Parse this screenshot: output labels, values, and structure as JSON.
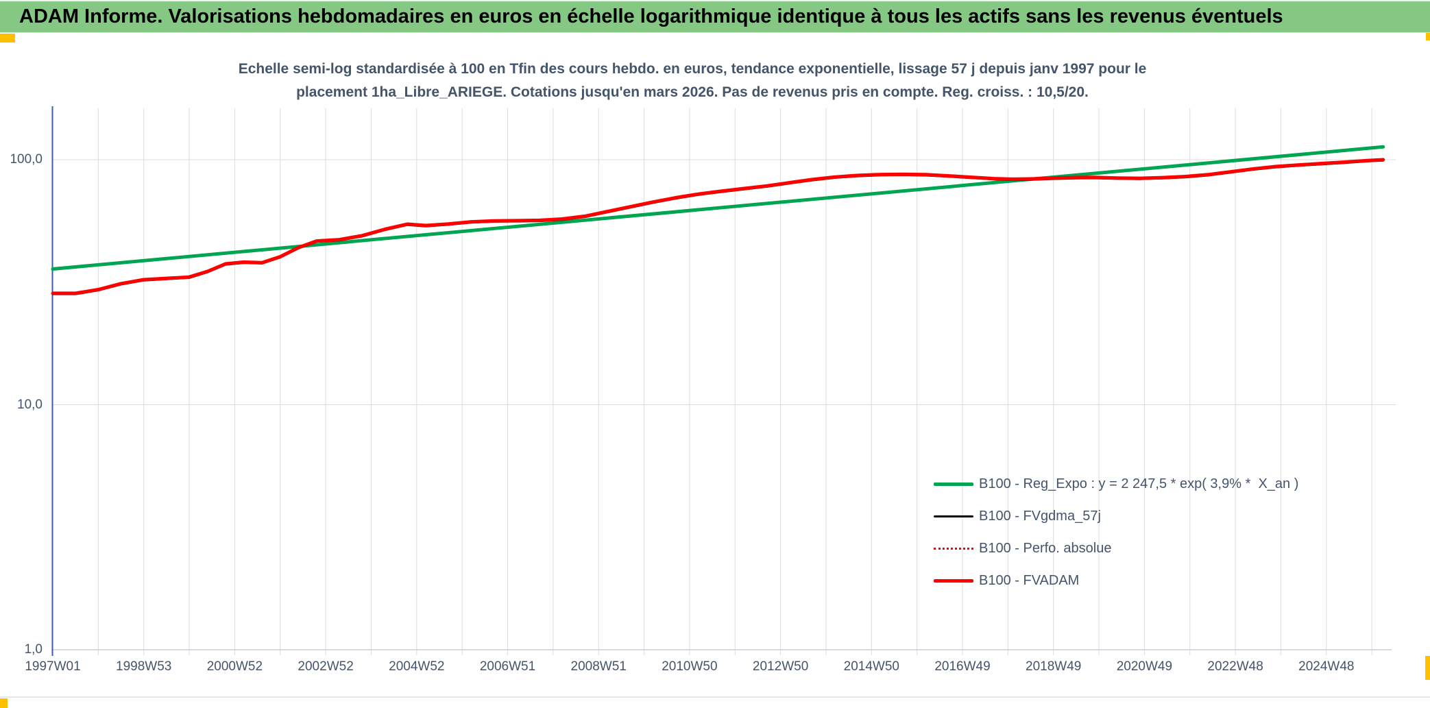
{
  "window": {
    "title": "ADAM Informe. Valorisations hebdomadaires en euros en échelle logarithmique identique à tous les actifs sans les revenus éventuels"
  },
  "chart": {
    "title_line1": "Echelle semi-log standardisée à 100 en Tfin des cours hebdo. en euros, tendance exponentielle, lissage 57 j depuis janv 1997 pour le",
    "title_line2": "placement 1ha_Libre_ARIEGE. Cotations jusqu'en mars 2026. Pas de revenus pris en compte. Reg. croiss. : 10,5/20."
  },
  "colors": {
    "titlebar_bg": "#84c884",
    "marker_orange": "#ffc000",
    "series_green": "#00a551",
    "series_red": "#ff0000",
    "series_black": "#000000",
    "axis_blue": "#3a5da8",
    "gridline": "#dcdcdc",
    "baseline": "#c6cedd",
    "text_dark": "#44546a"
  },
  "chart_data": {
    "type": "line",
    "y_scale": "log10",
    "grid": "on",
    "legend_position": "inside-right-lower",
    "x_axis": {
      "range_years": [
        1997.0,
        2026.25
      ],
      "gridline_step_years": 1,
      "ticks": [
        {
          "label": "1997W01",
          "year": 1997
        },
        {
          "label": "1998W53",
          "year": 1999
        },
        {
          "label": "2000W52",
          "year": 2001
        },
        {
          "label": "2002W52",
          "year": 2003
        },
        {
          "label": "2004W52",
          "year": 2005
        },
        {
          "label": "2006W51",
          "year": 2007
        },
        {
          "label": "2008W51",
          "year": 2009
        },
        {
          "label": "2010W50",
          "year": 2011
        },
        {
          "label": "2012W50",
          "year": 2013
        },
        {
          "label": "2014W50",
          "year": 2015
        },
        {
          "label": "2016W49",
          "year": 2017
        },
        {
          "label": "2018W49",
          "year": 2019
        },
        {
          "label": "2020W49",
          "year": 2021
        },
        {
          "label": "2022W48",
          "year": 2023
        },
        {
          "label": "2024W48",
          "year": 2025
        }
      ]
    },
    "y_axis": {
      "ticks": [
        {
          "label": "100,0",
          "value": 100
        },
        {
          "label": "10,0",
          "value": 10
        },
        {
          "label": "1,0",
          "value": 1
        }
      ],
      "range": [
        1,
        200
      ]
    },
    "series": [
      {
        "name": "B100 - Reg_Expo : y = 2 247,5 * exp( 3,9% *  X_an )",
        "color": "#00a551",
        "style": "solid-thick",
        "points": [
          [
            1997.0,
            35.8
          ],
          [
            2026.25,
            112.8
          ]
        ]
      },
      {
        "name": "B100 - FVgdma_57j",
        "color": "#000000",
        "style": "solid-thin",
        "points_same_as": "B100 - FVADAM"
      },
      {
        "name": "B100 - Perfo. absolue",
        "color": "#ff0000",
        "style": "dotted",
        "points_same_as": "B100 - FVADAM"
      },
      {
        "name": "B100 - FVADAM",
        "color": "#ff0000",
        "style": "solid-thick",
        "points": [
          [
            1997.0,
            28.5
          ],
          [
            1997.5,
            28.5
          ],
          [
            1998.0,
            29.5
          ],
          [
            1998.5,
            31.2
          ],
          [
            1999.0,
            32.4
          ],
          [
            1999.5,
            32.8
          ],
          [
            2000.0,
            33.2
          ],
          [
            2000.4,
            35.0
          ],
          [
            2000.8,
            37.6
          ],
          [
            2001.2,
            38.2
          ],
          [
            2001.6,
            38.0
          ],
          [
            2002.0,
            40.2
          ],
          [
            2002.4,
            43.8
          ],
          [
            2002.8,
            46.6
          ],
          [
            2003.3,
            47.2
          ],
          [
            2003.8,
            49.0
          ],
          [
            2004.3,
            52.0
          ],
          [
            2004.8,
            54.6
          ],
          [
            2005.2,
            53.9
          ],
          [
            2005.7,
            54.7
          ],
          [
            2006.2,
            55.8
          ],
          [
            2006.7,
            56.3
          ],
          [
            2007.2,
            56.4
          ],
          [
            2007.7,
            56.6
          ],
          [
            2008.2,
            57.3
          ],
          [
            2008.7,
            58.8
          ],
          [
            2009.2,
            61.5
          ],
          [
            2009.7,
            64.3
          ],
          [
            2010.2,
            67.2
          ],
          [
            2010.7,
            70.0
          ],
          [
            2011.2,
            72.4
          ],
          [
            2011.7,
            74.4
          ],
          [
            2012.2,
            76.3
          ],
          [
            2012.7,
            78.2
          ],
          [
            2013.2,
            80.6
          ],
          [
            2013.7,
            83.0
          ],
          [
            2014.2,
            85.0
          ],
          [
            2014.7,
            86.3
          ],
          [
            2015.2,
            87.0
          ],
          [
            2015.7,
            87.2
          ],
          [
            2016.2,
            86.9
          ],
          [
            2016.7,
            85.9
          ],
          [
            2017.2,
            84.8
          ],
          [
            2017.7,
            83.7
          ],
          [
            2018.1,
            83.3
          ],
          [
            2018.5,
            83.5
          ],
          [
            2019.0,
            84.1
          ],
          [
            2019.5,
            84.6
          ],
          [
            2019.9,
            84.7
          ],
          [
            2020.4,
            84.2
          ],
          [
            2020.9,
            84.0
          ],
          [
            2021.4,
            84.5
          ],
          [
            2021.9,
            85.4
          ],
          [
            2022.4,
            86.9
          ],
          [
            2022.9,
            89.3
          ],
          [
            2023.4,
            91.8
          ],
          [
            2023.9,
            93.8
          ],
          [
            2024.4,
            95.2
          ],
          [
            2024.9,
            96.5
          ],
          [
            2025.4,
            97.8
          ],
          [
            2025.9,
            99.2
          ],
          [
            2026.25,
            100.0
          ]
        ]
      }
    ]
  }
}
